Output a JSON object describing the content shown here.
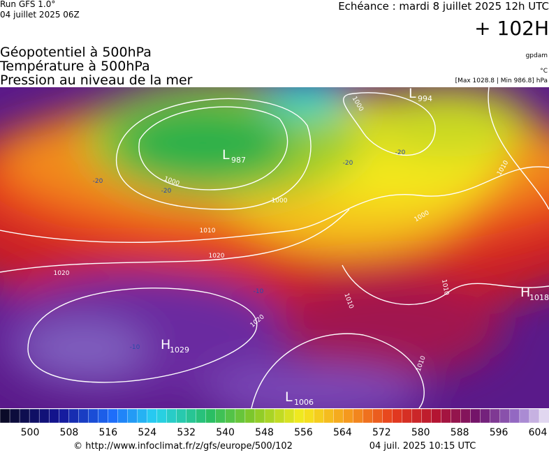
{
  "header": {
    "run": "Run GFS 1.0°",
    "run_date": "04 juillet 2025 06Z",
    "forecast_time": "Echéance : mardi 8 juillet 2025 12h UTC",
    "lead": "+ 102H"
  },
  "titles": [
    "Géopotentiel à 500hPa",
    "Température à 500hPa",
    "Pression au niveau de la mer"
  ],
  "units": {
    "geopotential": "gpdam",
    "temperature": "°C",
    "pressure": "[Max 1028.8 | Min 986.8] hPa"
  },
  "map": {
    "pressure_centers": [
      {
        "symbol": "L",
        "value": "994"
      },
      {
        "symbol": "L",
        "value": "987"
      },
      {
        "symbol": "H",
        "value": "1029"
      },
      {
        "symbol": "H",
        "value": "1018"
      },
      {
        "symbol": "L",
        "value": "1006"
      }
    ],
    "isobar_labels": [
      "1000",
      "1000",
      "1000",
      "1000",
      "1010",
      "1020",
      "1020",
      "1020",
      "1010",
      "1010",
      "1010",
      "1010"
    ],
    "temperature_labels": [
      "-20",
      "-20",
      "-20",
      "-20",
      "-10",
      "-10"
    ]
  },
  "colorbar": {
    "labels": [
      500,
      508,
      516,
      524,
      532,
      540,
      548,
      556,
      564,
      572,
      580,
      588,
      596,
      604
    ]
  },
  "footer": {
    "url": "© http://www.infoclimat.fr/z/gfs/europe/500/102",
    "date": "04 juil. 2025 10:15 UTC"
  }
}
